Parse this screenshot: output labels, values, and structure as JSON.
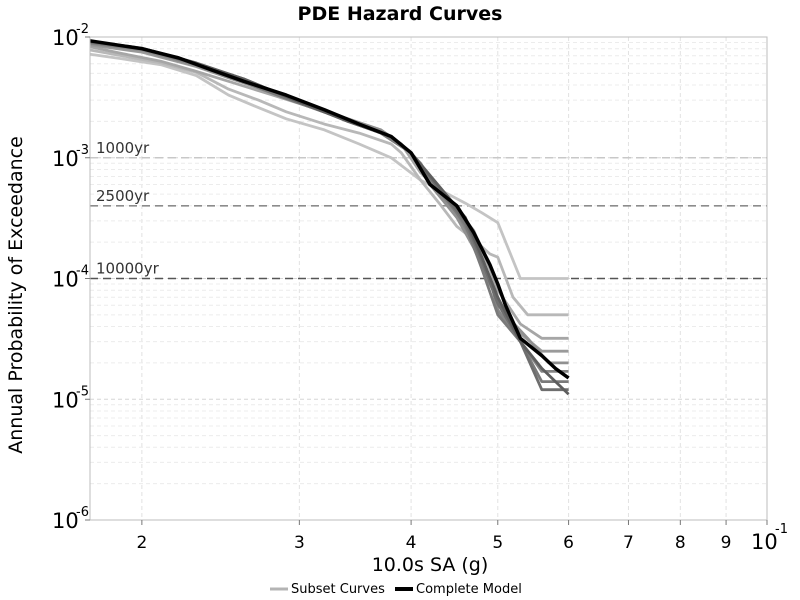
{
  "chart_data": {
    "type": "line",
    "title": "PDE Hazard Curves",
    "xlabel": "10.0s SA (g)",
    "ylabel": "Annual Probability of Exceedance",
    "xscale": "log",
    "yscale": "log",
    "xlim": [
      0.0175,
      0.1
    ],
    "ylim": [
      1e-06,
      0.01
    ],
    "x_ticks": [
      {
        "value": 0.02,
        "label": "2"
      },
      {
        "value": 0.03,
        "label": "3"
      },
      {
        "value": 0.04,
        "label": "4"
      },
      {
        "value": 0.05,
        "label": "5"
      },
      {
        "value": 0.06,
        "label": "6"
      },
      {
        "value": 0.07,
        "label": "7"
      },
      {
        "value": 0.08,
        "label": "8"
      },
      {
        "value": 0.09,
        "label": "9"
      },
      {
        "value": 0.1,
        "label": "10",
        "exponent": "-1"
      }
    ],
    "y_ticks": [
      {
        "value": 0.01,
        "base": "10",
        "exponent": "-2"
      },
      {
        "value": 0.001,
        "base": "10",
        "exponent": "-3"
      },
      {
        "value": 0.0001,
        "base": "10",
        "exponent": "-4"
      },
      {
        "value": 1e-05,
        "base": "10",
        "exponent": "-5"
      },
      {
        "value": 1e-06,
        "base": "10",
        "exponent": "-6"
      }
    ],
    "grid": true,
    "reference_lines": [
      {
        "label": "1000yr",
        "y": 0.001,
        "color": "#c8c8c8"
      },
      {
        "label": "2500yr",
        "y": 0.0004,
        "color": "#8c8c8c"
      },
      {
        "label": "10000yr",
        "y": 0.0001,
        "color": "#555555"
      }
    ],
    "legend": {
      "placement": "bottom-center",
      "entries": [
        {
          "label": "Subset Curves",
          "color": "#b4b4b4"
        },
        {
          "label": "Complete Model",
          "color": "#000000"
        }
      ]
    },
    "series": [
      {
        "color": "#c4c4c4",
        "points": [
          [
            0.0175,
            0.0072
          ],
          [
            0.019,
            0.0066
          ],
          [
            0.021,
            0.0059
          ],
          [
            0.023,
            0.0048
          ],
          [
            0.025,
            0.0033
          ],
          [
            0.027,
            0.0026
          ],
          [
            0.029,
            0.0021
          ],
          [
            0.032,
            0.0017
          ],
          [
            0.035,
            0.0013
          ],
          [
            0.038,
            0.001
          ],
          [
            0.041,
            0.00065
          ],
          [
            0.044,
            0.0005
          ],
          [
            0.046,
            0.00042
          ],
          [
            0.048,
            0.00035
          ],
          [
            0.05,
            0.00029
          ],
          [
            0.053,
            0.0001
          ],
          [
            0.056,
            0.0001
          ],
          [
            0.06,
            0.0001
          ]
        ]
      },
      {
        "color": "#b8b8b8",
        "points": [
          [
            0.0175,
            0.0078
          ],
          [
            0.019,
            0.007
          ],
          [
            0.021,
            0.0061
          ],
          [
            0.023,
            0.0051
          ],
          [
            0.025,
            0.0037
          ],
          [
            0.027,
            0.003
          ],
          [
            0.029,
            0.0024
          ],
          [
            0.032,
            0.0019
          ],
          [
            0.035,
            0.0016
          ],
          [
            0.038,
            0.0013
          ],
          [
            0.039,
            0.0011
          ],
          [
            0.041,
            0.00065
          ],
          [
            0.043,
            0.00042
          ],
          [
            0.045,
            0.00027
          ],
          [
            0.047,
            0.00021
          ],
          [
            0.049,
            0.00016
          ],
          [
            0.05,
            0.00015
          ],
          [
            0.052,
            7e-05
          ],
          [
            0.054,
            5e-05
          ],
          [
            0.057,
            5e-05
          ],
          [
            0.06,
            5e-05
          ]
        ]
      },
      {
        "color": "#a6a6a6",
        "points": [
          [
            0.0175,
            0.0083
          ],
          [
            0.019,
            0.0073
          ],
          [
            0.021,
            0.0063
          ],
          [
            0.023,
            0.0052
          ],
          [
            0.025,
            0.0043
          ],
          [
            0.028,
            0.0033
          ],
          [
            0.031,
            0.0026
          ],
          [
            0.034,
            0.0021
          ],
          [
            0.037,
            0.0017
          ],
          [
            0.039,
            0.0013
          ],
          [
            0.041,
            0.00075
          ],
          [
            0.044,
            0.00045
          ],
          [
            0.047,
            0.00025
          ],
          [
            0.049,
            0.00012
          ],
          [
            0.05,
            8e-05
          ],
          [
            0.053,
            4.2e-05
          ],
          [
            0.056,
            3.2e-05
          ],
          [
            0.06,
            3.2e-05
          ]
        ]
      },
      {
        "color": "#9a9a9a",
        "points": [
          [
            0.0175,
            0.0086
          ],
          [
            0.02,
            0.0075
          ],
          [
            0.023,
            0.0057
          ],
          [
            0.025,
            0.0046
          ],
          [
            0.028,
            0.0035
          ],
          [
            0.031,
            0.0027
          ],
          [
            0.034,
            0.0021
          ],
          [
            0.037,
            0.0017
          ],
          [
            0.039,
            0.0013
          ],
          [
            0.041,
            0.0009
          ],
          [
            0.043,
            0.0005
          ],
          [
            0.046,
            0.00026
          ],
          [
            0.048,
            0.00014
          ],
          [
            0.05,
            6.5e-05
          ],
          [
            0.053,
            3.5e-05
          ],
          [
            0.056,
            2.5e-05
          ],
          [
            0.06,
            2.5e-05
          ]
        ]
      },
      {
        "color": "#909090",
        "points": [
          [
            0.0175,
            0.0088
          ],
          [
            0.02,
            0.0078
          ],
          [
            0.023,
            0.0058
          ],
          [
            0.025,
            0.0046
          ],
          [
            0.029,
            0.0032
          ],
          [
            0.033,
            0.0022
          ],
          [
            0.037,
            0.0017
          ],
          [
            0.04,
            0.0011
          ],
          [
            0.042,
            0.0006
          ],
          [
            0.045,
            0.00032
          ],
          [
            0.047,
            0.00018
          ],
          [
            0.049,
            9e-05
          ],
          [
            0.051,
            5e-05
          ],
          [
            0.054,
            3.2e-05
          ],
          [
            0.057,
            2e-05
          ],
          [
            0.06,
            2e-05
          ]
        ]
      },
      {
        "color": "#858585",
        "points": [
          [
            0.0175,
            0.0089
          ],
          [
            0.02,
            0.0079
          ],
          [
            0.023,
            0.0059
          ],
          [
            0.025,
            0.0047
          ],
          [
            0.029,
            0.0031
          ],
          [
            0.033,
            0.0022
          ],
          [
            0.037,
            0.0016
          ],
          [
            0.04,
            0.0011
          ],
          [
            0.042,
            0.00065
          ],
          [
            0.045,
            0.00035
          ],
          [
            0.047,
            0.0002
          ],
          [
            0.049,
            0.0001
          ],
          [
            0.05,
            5.5e-05
          ],
          [
            0.053,
            3e-05
          ],
          [
            0.056,
            1.7e-05
          ],
          [
            0.06,
            1.7e-05
          ]
        ]
      },
      {
        "color": "#7a7a7a",
        "points": [
          [
            0.0175,
            0.009
          ],
          [
            0.02,
            0.008
          ],
          [
            0.023,
            0.006
          ],
          [
            0.025,
            0.0048
          ],
          [
            0.029,
            0.0031
          ],
          [
            0.033,
            0.0022
          ],
          [
            0.037,
            0.0016
          ],
          [
            0.04,
            0.0011
          ],
          [
            0.043,
            0.00055
          ],
          [
            0.046,
            0.00028
          ],
          [
            0.048,
            0.00012
          ],
          [
            0.05,
            5e-05
          ],
          [
            0.053,
            3e-05
          ],
          [
            0.056,
            1.4e-05
          ],
          [
            0.06,
            1.4e-05
          ]
        ]
      },
      {
        "color": "#6e6e6e",
        "points": [
          [
            0.0175,
            0.0091
          ],
          [
            0.02,
            0.008
          ],
          [
            0.023,
            0.006
          ],
          [
            0.026,
            0.0045
          ],
          [
            0.03,
            0.0029
          ],
          [
            0.034,
            0.002
          ],
          [
            0.038,
            0.0015
          ],
          [
            0.04,
            0.0011
          ],
          [
            0.043,
            0.00055
          ],
          [
            0.046,
            0.0003
          ],
          [
            0.048,
            0.00014
          ],
          [
            0.05,
            6.2e-05
          ],
          [
            0.053,
            3e-05
          ],
          [
            0.056,
            1.2e-05
          ],
          [
            0.06,
            1.2e-05
          ]
        ]
      },
      {
        "color": "#5e5e5e",
        "points": [
          [
            0.0175,
            0.0092
          ],
          [
            0.02,
            0.0081
          ],
          [
            0.023,
            0.0061
          ],
          [
            0.026,
            0.0045
          ],
          [
            0.03,
            0.0029
          ],
          [
            0.034,
            0.002
          ],
          [
            0.038,
            0.0015
          ],
          [
            0.04,
            0.0011
          ],
          [
            0.043,
            0.00058
          ],
          [
            0.046,
            0.00032
          ],
          [
            0.048,
            0.00015
          ],
          [
            0.05,
            7e-05
          ],
          [
            0.053,
            3e-05
          ],
          [
            0.056,
            1.8e-05
          ],
          [
            0.06,
            1.1e-05
          ]
        ]
      },
      {
        "color": "#000000",
        "width": 3.5,
        "points": [
          [
            0.0175,
            0.0093
          ],
          [
            0.02,
            0.008
          ],
          [
            0.022,
            0.0067
          ],
          [
            0.024,
            0.0053
          ],
          [
            0.026,
            0.0043
          ],
          [
            0.029,
            0.0033
          ],
          [
            0.032,
            0.0025
          ],
          [
            0.035,
            0.0019
          ],
          [
            0.038,
            0.0015
          ],
          [
            0.04,
            0.0011
          ],
          [
            0.042,
            0.0006
          ],
          [
            0.045,
            0.0004
          ],
          [
            0.047,
            0.00024
          ],
          [
            0.049,
            0.00013
          ],
          [
            0.05,
            9e-05
          ],
          [
            0.051,
            6e-05
          ],
          [
            0.053,
            3.2e-05
          ],
          [
            0.056,
            2.3e-05
          ],
          [
            0.058,
            1.8e-05
          ],
          [
            0.06,
            1.5e-05
          ]
        ]
      }
    ]
  }
}
